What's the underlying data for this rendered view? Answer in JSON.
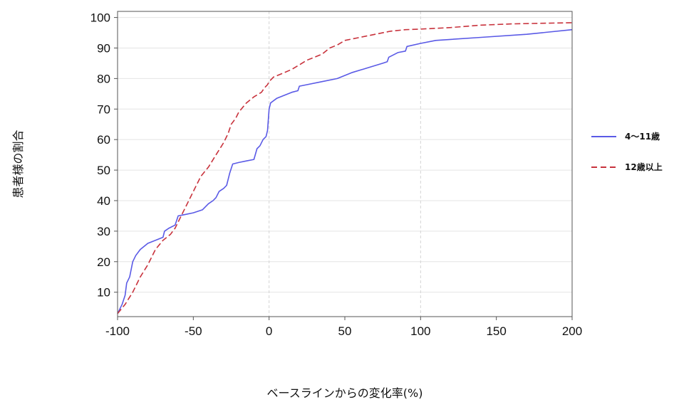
{
  "chart_data": {
    "type": "line",
    "title": "",
    "xlabel": "ベースラインからの変化率(%)",
    "ylabel": "患者様の割合",
    "xlim": [
      -100,
      200
    ],
    "ylim": [
      2,
      102
    ],
    "xticks": [
      -100,
      -50,
      0,
      50,
      100,
      150,
      200
    ],
    "xtick_labels": [
      "-100",
      "-50",
      "0",
      "50",
      "100",
      "150",
      "200"
    ],
    "yticks": [
      10,
      20,
      30,
      40,
      50,
      60,
      70,
      80,
      90,
      100
    ],
    "ytick_labels": [
      "10",
      "20",
      "30",
      "40",
      "50",
      "60",
      "70",
      "80",
      "90",
      "100"
    ],
    "grid": "horizontal",
    "reference_lines_x": [
      0,
      100
    ],
    "legend": "right",
    "series": [
      {
        "name": "4〜11歳",
        "color": "#5a5ae6",
        "dash": "solid",
        "points": [
          [
            -100,
            3
          ],
          [
            -97,
            6
          ],
          [
            -95,
            9
          ],
          [
            -94,
            13
          ],
          [
            -92,
            15
          ],
          [
            -90,
            20
          ],
          [
            -88,
            22
          ],
          [
            -85,
            24
          ],
          [
            -80,
            26
          ],
          [
            -75,
            27
          ],
          [
            -70,
            28
          ],
          [
            -69,
            30
          ],
          [
            -66,
            31
          ],
          [
            -62,
            32
          ],
          [
            -60,
            35
          ],
          [
            -55,
            35.5
          ],
          [
            -50,
            36
          ],
          [
            -44,
            37
          ],
          [
            -40,
            39
          ],
          [
            -37,
            40
          ],
          [
            -35,
            41
          ],
          [
            -33,
            43
          ],
          [
            -30,
            44
          ],
          [
            -28,
            45
          ],
          [
            -26,
            49
          ],
          [
            -24,
            52
          ],
          [
            -20,
            52.5
          ],
          [
            -15,
            53
          ],
          [
            -10,
            53.5
          ],
          [
            -8,
            57
          ],
          [
            -6,
            58
          ],
          [
            -4,
            60
          ],
          [
            -2,
            61
          ],
          [
            -1,
            63
          ],
          [
            0,
            70
          ],
          [
            1,
            72
          ],
          [
            5,
            73.5
          ],
          [
            10,
            74.5
          ],
          [
            15,
            75.5
          ],
          [
            19,
            76
          ],
          [
            20,
            77.5
          ],
          [
            25,
            78
          ],
          [
            35,
            79
          ],
          [
            45,
            80
          ],
          [
            55,
            82
          ],
          [
            65,
            83.5
          ],
          [
            75,
            85
          ],
          [
            78,
            85.5
          ],
          [
            79,
            87
          ],
          [
            85,
            88.5
          ],
          [
            90,
            89
          ],
          [
            91,
            90.5
          ],
          [
            100,
            91.5
          ],
          [
            110,
            92.5
          ],
          [
            140,
            93.5
          ],
          [
            170,
            94.5
          ],
          [
            200,
            96
          ]
        ]
      },
      {
        "name": "12歳以上",
        "color": "#c8323c",
        "dash": "dashed",
        "points": [
          [
            -100,
            3
          ],
          [
            -95,
            6
          ],
          [
            -90,
            10
          ],
          [
            -85,
            15
          ],
          [
            -80,
            19
          ],
          [
            -75,
            24
          ],
          [
            -70,
            27
          ],
          [
            -65,
            29
          ],
          [
            -62,
            31
          ],
          [
            -58,
            35
          ],
          [
            -55,
            38
          ],
          [
            -50,
            43
          ],
          [
            -45,
            48
          ],
          [
            -40,
            51
          ],
          [
            -35,
            55
          ],
          [
            -30,
            59
          ],
          [
            -27,
            62
          ],
          [
            -25,
            65
          ],
          [
            -22,
            67
          ],
          [
            -20,
            69
          ],
          [
            -15,
            72
          ],
          [
            -10,
            74
          ],
          [
            -5,
            75.5
          ],
          [
            -3,
            77
          ],
          [
            -1,
            78
          ],
          [
            0,
            79
          ],
          [
            3,
            80.5
          ],
          [
            8,
            81.5
          ],
          [
            15,
            83
          ],
          [
            20,
            84.5
          ],
          [
            25,
            86
          ],
          [
            30,
            87
          ],
          [
            35,
            88
          ],
          [
            40,
            90
          ],
          [
            45,
            91
          ],
          [
            50,
            92.5
          ],
          [
            60,
            93.5
          ],
          [
            70,
            94.5
          ],
          [
            80,
            95.5
          ],
          [
            90,
            96
          ],
          [
            100,
            96.2
          ],
          [
            120,
            96.7
          ],
          [
            140,
            97.5
          ],
          [
            160,
            97.9
          ],
          [
            180,
            98.1
          ],
          [
            200,
            98.3
          ]
        ]
      }
    ]
  }
}
